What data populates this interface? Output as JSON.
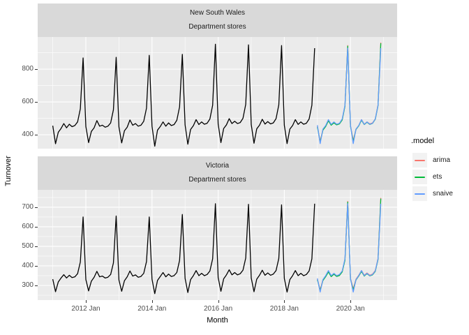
{
  "figure": {
    "y_axis_title": "Turnover",
    "x_axis_title": "Month",
    "colors": {
      "strip_bg": "#D9D9D9",
      "panel_bg": "#EBEBEB",
      "gridline": "#FFFFFF",
      "tick_text": "#4D4D4D",
      "axis_tick": "#333333",
      "legend_key_bg": "#F2F2F2"
    }
  },
  "chart_data": {
    "type": "line",
    "x_axis": {
      "title": "Month",
      "domain": [
        2010.544,
        2021.41
      ],
      "major_ticks": [
        {
          "t": 2012,
          "label": "2012 Jan"
        },
        {
          "t": 2014,
          "label": "2014 Jan"
        },
        {
          "t": 2016,
          "label": "2016 Jan"
        },
        {
          "t": 2018,
          "label": "2018 Jan"
        },
        {
          "t": 2020,
          "label": "2020 Jan"
        }
      ],
      "minor_ticks": [
        2011,
        2013,
        2015,
        2017,
        2019,
        2021
      ]
    },
    "y_axis": {
      "title": "Turnover"
    },
    "facets": [
      {
        "strip": [
          "New South Wales",
          "Department stores"
        ],
        "ylim": [
          315,
          996
        ],
        "y_major": [
          400,
          600,
          800
        ],
        "y_minor": [
          500,
          700,
          900
        ],
        "series": [
          {
            "name": "actual",
            "color": "#000000",
            "start": 2011.0,
            "values": [
              455,
              345,
              415,
              438,
              468,
              442,
              464,
              449,
              456,
              478,
              558,
              868,
              450,
              352,
              420,
              442,
              486,
              452,
              458,
              446,
              452,
              472,
              552,
              872,
              448,
              350,
              424,
              446,
              490,
              458,
              468,
              452,
              458,
              482,
              562,
              884,
              452,
              330,
              428,
              450,
              478,
              452,
              472,
              456,
              462,
              488,
              570,
              890,
              460,
              342,
              432,
              455,
              492,
              462,
              478,
              464,
              470,
              496,
              580,
              952,
              465,
              352,
              438,
              460,
              498,
              468,
              482,
              468,
              474,
              500,
              585,
              948,
              462,
              348,
              436,
              458,
              494,
              465,
              480,
              466,
              472,
              498,
              582,
              944,
              458,
              346,
              434,
              456,
              492,
              463,
              478,
              464,
              470,
              496,
              580,
              928
            ]
          },
          {
            "name": "arima",
            "color": "#F8766D",
            "start": 2019.0,
            "values": [
              452,
              360,
              430,
              452,
              488,
              460,
              474,
              462,
              468,
              492,
              576,
              944,
              456,
              364,
              434,
              456,
              492,
              464,
              478,
              466,
              472,
              496,
              582,
              962
            ]
          },
          {
            "name": "ets",
            "color": "#00BA38",
            "start": 2019.0,
            "values": [
              448,
              355,
              428,
              450,
              485,
              458,
              472,
              460,
              466,
              490,
              574,
              940,
              452,
              358,
              432,
              454,
              489,
              462,
              476,
              463,
              469,
              494,
              578,
              958
            ]
          },
          {
            "name": "snaive",
            "color": "#619CFF",
            "start": 2019.0,
            "values": [
              458,
              346,
              434,
              456,
              492,
              463,
              478,
              464,
              470,
              496,
              580,
              928,
              458,
              346,
              434,
              456,
              492,
              463,
              478,
              464,
              470,
              496,
              580,
              928
            ]
          }
        ]
      },
      {
        "strip": [
          "Victoria",
          "Department stores"
        ],
        "ylim": [
          225,
          789
        ],
        "y_major": [
          300,
          400,
          500,
          600,
          700
        ],
        "y_minor": [
          250,
          350,
          450,
          550,
          650,
          750
        ],
        "series": [
          {
            "name": "actual",
            "color": "#000000",
            "start": 2011.0,
            "values": [
              332,
              268,
              318,
              338,
              355,
              338,
              352,
              340,
              344,
              360,
              420,
              650,
              330,
              272,
              322,
              342,
              372,
              344,
              348,
              338,
              342,
              356,
              415,
              655,
              328,
              270,
              324,
              344,
              374,
              348,
              354,
              342,
              346,
              362,
              422,
              650,
              332,
              258,
              326,
              346,
              366,
              344,
              358,
              346,
              350,
              366,
              428,
              663,
              336,
              264,
              330,
              350,
              376,
              350,
              362,
              350,
              356,
              374,
              436,
              718,
              340,
              270,
              334,
              354,
              380,
              354,
              366,
              354,
              360,
              378,
              440,
              715,
              338,
              268,
              332,
              352,
              378,
              352,
              364,
              352,
              358,
              376,
              438,
              712,
              336,
              266,
              330,
              350,
              376,
              350,
              362,
              350,
              356,
              374,
              436,
              718
            ]
          },
          {
            "name": "arima",
            "color": "#F8766D",
            "start": 2019.0,
            "values": [
              332,
              278,
              328,
              348,
              372,
              348,
              360,
              349,
              354,
              372,
              432,
              730,
              336,
              282,
              332,
              352,
              376,
              352,
              364,
              352,
              358,
              376,
              438,
              748
            ]
          },
          {
            "name": "ets",
            "color": "#00BA38",
            "start": 2019.0,
            "values": [
              329,
              274,
              325,
              345,
              369,
              345,
              357,
              346,
              351,
              369,
              429,
              726,
              332,
              277,
              328,
              348,
              372,
              348,
              360,
              349,
              354,
              372,
              433,
              744
            ]
          },
          {
            "name": "snaive",
            "color": "#619CFF",
            "start": 2019.0,
            "values": [
              336,
              266,
              330,
              350,
              376,
              350,
              362,
              350,
              356,
              374,
              436,
              718,
              336,
              266,
              330,
              350,
              376,
              350,
              362,
              350,
              356,
              374,
              436,
              718
            ]
          }
        ]
      }
    ],
    "legend": {
      "title": ".model",
      "entries": [
        {
          "label": "arima",
          "color": "#F8766D"
        },
        {
          "label": "ets",
          "color": "#00BA38"
        },
        {
          "label": "snaive",
          "color": "#619CFF"
        }
      ]
    }
  }
}
